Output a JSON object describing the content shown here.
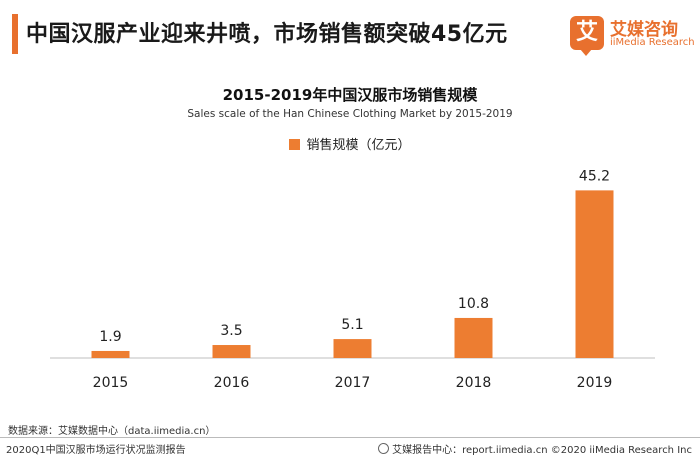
{
  "header": {
    "headline": "中国汉服产业迎来井喷，市场销售额突破45亿元",
    "logo_mark": "艾",
    "logo_cn": "艾媒咨询",
    "logo_en": "iiMedia Research"
  },
  "chart_data": {
    "type": "bar",
    "title": "2015-2019年中国汉服市场销售规模",
    "subtitle": "Sales scale of the Han Chinese Clothing Market by 2015-2019",
    "categories": [
      "2015",
      "2016",
      "2017",
      "2018",
      "2019"
    ],
    "series": [
      {
        "name": "销售规模（亿元）",
        "values": [
          1.9,
          3.5,
          5.1,
          10.8,
          45.2
        ]
      }
    ],
    "value_labels": [
      "1.9",
      "3.5",
      "5.1",
      "10.8",
      "45.2"
    ],
    "ylim": [
      0,
      48
    ],
    "grid": false,
    "legend_position": "top-center",
    "bar_color": "#ed7d31"
  },
  "footer": {
    "source": "数据来源：艾媒数据中心（data.iimedia.cn）",
    "report": "2020Q1中国汉服市场运行状况监测报告",
    "site": "艾媒报告中心：report.iimedia.cn ©2020 iiMedia Research Inc"
  }
}
